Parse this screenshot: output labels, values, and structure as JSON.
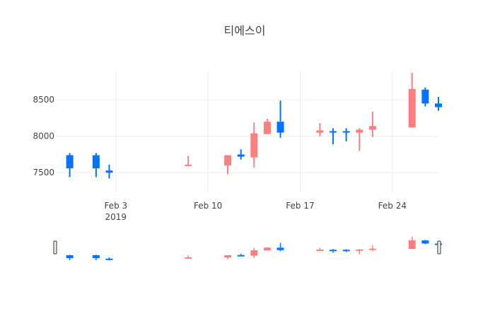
{
  "chart_data": {
    "type": "candlestick",
    "title": "티에스이",
    "xlabel": "",
    "ylabel": "",
    "x_range": [
      "2019-01-29",
      "2019-02-27"
    ],
    "ylim": [
      7250,
      8900
    ],
    "y_ticks": [
      7500,
      8000,
      8500
    ],
    "x_ticks": [
      {
        "date": "2019-02-03",
        "label": "Feb 3",
        "sublabel": "2019"
      },
      {
        "date": "2019-02-10",
        "label": "Feb 10",
        "sublabel": ""
      },
      {
        "date": "2019-02-17",
        "label": "Feb 17",
        "sublabel": ""
      },
      {
        "date": "2019-02-24",
        "label": "Feb 24",
        "sublabel": ""
      }
    ],
    "grid": true,
    "rangeslider": true,
    "colors": {
      "increasing": "#ff7f7f",
      "decreasing": "#0074ff",
      "grid": "#eeeeee",
      "axis_text": "#444444"
    },
    "candles": [
      {
        "date": "2019-01-30",
        "open": 7740,
        "high": 7770,
        "low": 7440,
        "close": 7560
      },
      {
        "date": "2019-02-01",
        "open": 7740,
        "high": 7770,
        "low": 7440,
        "close": 7560
      },
      {
        "date": "2019-02-02",
        "open": 7530,
        "high": 7610,
        "low": 7420,
        "close": 7500
      },
      {
        "date": "2019-02-08",
        "open": 7600,
        "high": 7730,
        "low": 7590,
        "close": 7610
      },
      {
        "date": "2019-02-11",
        "open": 7600,
        "high": 7740,
        "low": 7480,
        "close": 7740
      },
      {
        "date": "2019-02-12",
        "open": 7750,
        "high": 7820,
        "low": 7680,
        "close": 7720
      },
      {
        "date": "2019-02-13",
        "open": 7710,
        "high": 8190,
        "low": 7570,
        "close": 8040
      },
      {
        "date": "2019-02-14",
        "open": 8030,
        "high": 8240,
        "low": 8030,
        "close": 8200
      },
      {
        "date": "2019-02-15",
        "open": 8200,
        "high": 8490,
        "low": 7980,
        "close": 8050
      },
      {
        "date": "2019-02-18",
        "open": 8050,
        "high": 8180,
        "low": 8000,
        "close": 8080
      },
      {
        "date": "2019-02-19",
        "open": 8070,
        "high": 8110,
        "low": 7890,
        "close": 8050
      },
      {
        "date": "2019-02-20",
        "open": 8070,
        "high": 8110,
        "low": 7930,
        "close": 8050
      },
      {
        "date": "2019-02-21",
        "open": 8050,
        "high": 8110,
        "low": 7800,
        "close": 8090
      },
      {
        "date": "2019-02-22",
        "open": 8090,
        "high": 8340,
        "low": 7990,
        "close": 8140
      },
      {
        "date": "2019-02-25",
        "open": 8120,
        "high": 8870,
        "low": 8120,
        "close": 8650
      },
      {
        "date": "2019-02-26",
        "open": 8640,
        "high": 8670,
        "low": 8410,
        "close": 8450
      },
      {
        "date": "2019-02-27",
        "open": 8450,
        "high": 8540,
        "low": 8350,
        "close": 8400
      }
    ]
  }
}
